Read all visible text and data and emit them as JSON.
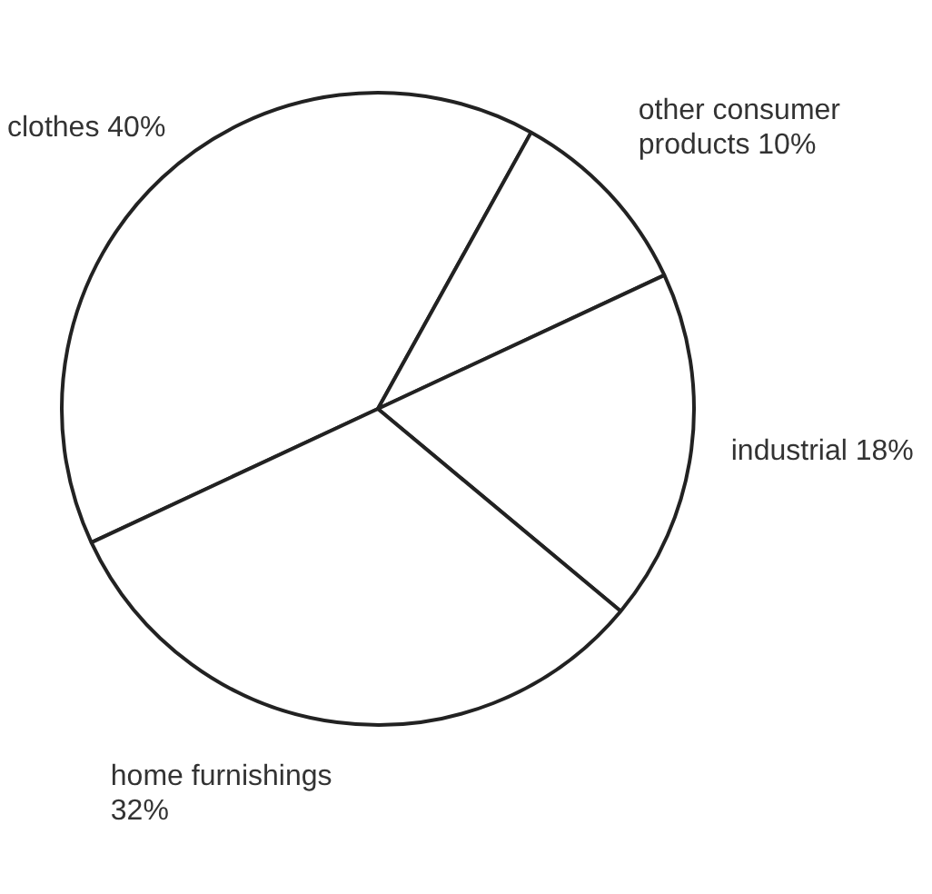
{
  "chart_data": {
    "type": "pie",
    "categories": [
      "clothes",
      "other consumer products",
      "industrial",
      "home furnishings"
    ],
    "values": [
      40,
      10,
      18,
      32
    ],
    "value_labels": [
      "40%",
      "10%",
      "18%",
      "32%"
    ],
    "colors": [
      "#ffffff",
      "#ffffff",
      "#ffffff",
      "#ffffff"
    ],
    "legend": false
  }
}
